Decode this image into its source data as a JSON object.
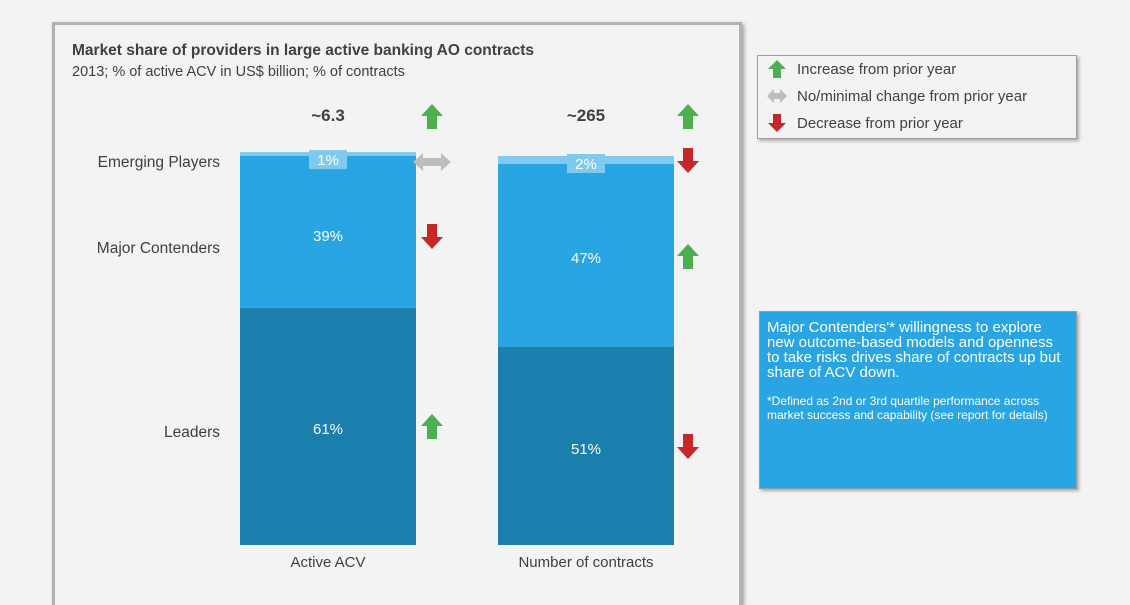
{
  "chart_data": {
    "type": "bar",
    "stacked": true,
    "title": "Market share of providers in large active banking AO contracts",
    "subtitle": "2013; % of active ACV in US$ billion; % of contracts",
    "categories": [
      "Active ACV",
      "Number of contracts"
    ],
    "totals": [
      "~6.3",
      "~265"
    ],
    "total_trends": [
      "increase",
      "increase"
    ],
    "ylim": [
      0,
      100
    ],
    "series": [
      {
        "name": "Leaders",
        "values": [
          61,
          51
        ],
        "labels": [
          "61%",
          "51%"
        ],
        "color": "#1a7fad",
        "trends": [
          "increase",
          "decrease"
        ]
      },
      {
        "name": "Major Contenders",
        "values": [
          39,
          47
        ],
        "labels": [
          "39%",
          "47%"
        ],
        "color": "#28a5e2",
        "trends": [
          "decrease",
          "increase"
        ]
      },
      {
        "name": "Emerging Players",
        "values": [
          1,
          2
        ],
        "labels": [
          "1%",
          "2%"
        ],
        "color": "#7fcaee",
        "trends": [
          "no-change",
          "decrease"
        ]
      }
    ]
  },
  "legend": {
    "items": [
      {
        "label": "Increase from prior year",
        "icon": "arrow-up-icon",
        "color": "#4caf50"
      },
      {
        "label": "No/minimal change from prior year",
        "icon": "arrow-left-right-icon",
        "color": "#bdbdbd"
      },
      {
        "label": "Decrease from prior year",
        "icon": "arrow-down-icon",
        "color": "#c62828"
      }
    ]
  },
  "note": {
    "main": "Major Contenders'* willingness to explore new outcome-based models and openness to take risks drives share of contracts up but share of ACV down.",
    "footnote": "*Defined as 2nd or 3rd quartile performance across market success and capability (see report for details)"
  },
  "colors": {
    "up": "#4caf50",
    "down": "#c62828",
    "flat": "#bdbdbd"
  }
}
